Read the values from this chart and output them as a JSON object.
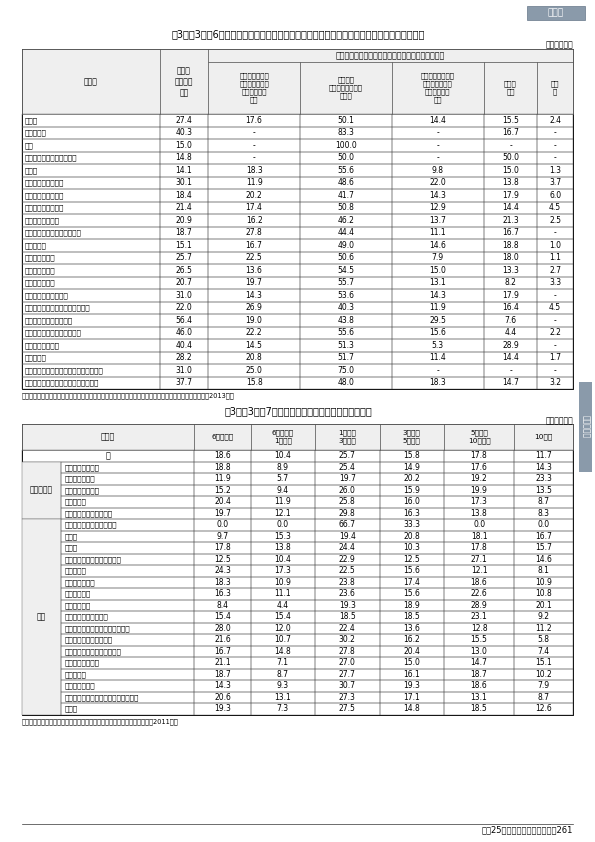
{
  "page_title_badge": "第３章",
  "table1_title": "付3－（3）－6表　現在の非正社員比率、今後の正社員・非正社員のバランスに対する考え方",
  "table1_unit": "（単位　％）",
  "table1_header_main": "今後の正社員・非正社員のバランスに対する考え方",
  "table1_row_labels": [
    "産業計",
    "農業、林業",
    "漁業",
    "鉱業、採石業、砂利採取業",
    "建設業",
    "製造業（消費関連）",
    "製造業（素材関連）",
    "製造業（機械関連）",
    "製造業（その他）",
    "電気・ガス・熱供給・水道業",
    "情報通信業",
    "運輸業、郵便業",
    "卸売業、小売業",
    "金融業、保険業",
    "不動産業、物品賃貸業",
    "学術研究、専門・技術サービス業",
    "宿泊業、飲食サービス業",
    "生活関連サービス業、娯楽業",
    "教育、学習支援業",
    "医療、福祉",
    "複合サービス業（郵便局、協同組合等）",
    "サービス業（他に分類されないもの）"
  ],
  "table1_data": [
    [
      "27.4",
      "17.6",
      "50.1",
      "14.4",
      "15.5",
      "2.4"
    ],
    [
      "40.3",
      "-",
      "83.3",
      "-",
      "16.7",
      "-"
    ],
    [
      "15.0",
      "-",
      "100.0",
      "-",
      "-",
      "-"
    ],
    [
      "14.8",
      "-",
      "50.0",
      "-",
      "50.0",
      "-"
    ],
    [
      "14.1",
      "18.3",
      "55.6",
      "9.8",
      "15.0",
      "1.3"
    ],
    [
      "30.1",
      "11.9",
      "48.6",
      "22.0",
      "13.8",
      "3.7"
    ],
    [
      "18.4",
      "20.2",
      "41.7",
      "14.3",
      "17.9",
      "6.0"
    ],
    [
      "21.4",
      "17.4",
      "50.8",
      "12.9",
      "14.4",
      "4.5"
    ],
    [
      "20.9",
      "16.2",
      "46.2",
      "13.7",
      "21.3",
      "2.5"
    ],
    [
      "18.7",
      "27.8",
      "44.4",
      "11.1",
      "16.7",
      "-"
    ],
    [
      "15.1",
      "16.7",
      "49.0",
      "14.6",
      "18.8",
      "1.0"
    ],
    [
      "25.7",
      "22.5",
      "50.6",
      "7.9",
      "18.0",
      "1.1"
    ],
    [
      "26.5",
      "13.6",
      "54.5",
      "15.0",
      "13.3",
      "2.7"
    ],
    [
      "20.7",
      "19.7",
      "55.7",
      "13.1",
      "8.2",
      "3.3"
    ],
    [
      "31.0",
      "14.3",
      "53.6",
      "14.3",
      "17.9",
      "-"
    ],
    [
      "22.0",
      "26.9",
      "40.3",
      "11.9",
      "16.4",
      "4.5"
    ],
    [
      "56.4",
      "19.0",
      "43.8",
      "29.5",
      "7.6",
      "-"
    ],
    [
      "46.0",
      "22.2",
      "55.6",
      "15.6",
      "4.4",
      "2.2"
    ],
    [
      "40.4",
      "14.5",
      "51.3",
      "5.3",
      "28.9",
      "-"
    ],
    [
      "28.2",
      "20.8",
      "51.7",
      "11.4",
      "14.4",
      "1.7"
    ],
    [
      "31.0",
      "25.0",
      "75.0",
      "-",
      "-",
      "-"
    ],
    [
      "37.7",
      "15.8",
      "48.0",
      "18.3",
      "14.7",
      "3.2"
    ]
  ],
  "table1_source": "資料出所　（社）労働政策研究・研修機構「構造変化の中での企業経営と人材のあり方に関する調査」（2013年）",
  "table2_title": "付3－（3）－7表　有期契約労働者の勤続年数別割合",
  "table2_unit": "（単位　％）",
  "table2_section2_label": "職務タイプ",
  "table2_section2_rows": [
    [
      "正社員同様職務型",
      "18.8",
      "8.9",
      "25.4",
      "14.9",
      "17.6",
      "14.3"
    ],
    [
      "高度技能活用型",
      "11.9",
      "5.7",
      "19.7",
      "20.2",
      "19.2",
      "23.3"
    ],
    [
      "別職務・同水準型",
      "15.2",
      "9.4",
      "26.0",
      "15.9",
      "19.9",
      "13.5"
    ],
    [
      "軽易職務型",
      "20.4",
      "11.9",
      "25.8",
      "16.0",
      "17.3",
      "8.7"
    ],
    [
      "事業所に正社員がいない",
      "19.7",
      "12.1",
      "29.8",
      "16.3",
      "13.8",
      "8.3"
    ]
  ],
  "table2_section3_label": "産業",
  "table2_section3_rows": [
    [
      "鉱業、採石業、砂利採取業",
      "0.0",
      "0.0",
      "66.7",
      "33.3",
      "0.0",
      "0.0"
    ],
    [
      "建設業",
      "9.7",
      "15.3",
      "19.4",
      "20.8",
      "18.1",
      "16.7"
    ],
    [
      "製造業",
      "17.8",
      "13.8",
      "24.4",
      "10.3",
      "17.8",
      "15.7"
    ],
    [
      "電気・ガス・熱供給・水道業",
      "12.5",
      "10.4",
      "22.9",
      "12.5",
      "27.1",
      "14.6"
    ],
    [
      "情報通信業",
      "24.3",
      "17.3",
      "22.5",
      "15.6",
      "12.1",
      "8.1"
    ],
    [
      "運輸業、郵便業",
      "18.3",
      "10.9",
      "23.8",
      "17.4",
      "18.6",
      "10.9"
    ],
    [
      "卸売・小売業",
      "16.3",
      "11.1",
      "23.6",
      "15.6",
      "22.6",
      "10.8"
    ],
    [
      "金融・保険業",
      "8.4",
      "4.4",
      "19.3",
      "18.9",
      "28.9",
      "20.1"
    ],
    [
      "不動産業、物品賃貸業",
      "15.4",
      "15.4",
      "18.5",
      "18.5",
      "23.1",
      "9.2"
    ],
    [
      "学術研究、専門・技術サービス業",
      "28.0",
      "12.0",
      "22.4",
      "13.6",
      "12.8",
      "11.2"
    ],
    [
      "宿泊業、飲食サービス業",
      "21.6",
      "10.7",
      "30.2",
      "16.2",
      "15.5",
      "5.8"
    ],
    [
      "生活関連サービス業、娯楽業",
      "16.7",
      "14.8",
      "27.8",
      "20.4",
      "13.0",
      "7.4"
    ],
    [
      "教育、学習支援業",
      "21.1",
      "7.1",
      "27.0",
      "15.0",
      "14.7",
      "15.1"
    ],
    [
      "医療、福祉",
      "18.7",
      "8.7",
      "27.7",
      "16.1",
      "18.7",
      "10.2"
    ],
    [
      "複合サービス業",
      "14.3",
      "9.3",
      "30.7",
      "19.3",
      "18.6",
      "7.9"
    ],
    [
      "サービス業（他に分類されないもの）",
      "20.6",
      "13.1",
      "27.3",
      "17.1",
      "13.1",
      "8.7"
    ],
    [
      "その他",
      "19.3",
      "7.3",
      "27.5",
      "14.8",
      "18.5",
      "12.6"
    ]
  ],
  "table2_source": "資料出所　厚生労働省「有期労働契約に関する実態調査（個人調査）」（2011年）",
  "footer_text": "平成25年版　労働経済の分析　261",
  "bg_color": "#ffffff"
}
